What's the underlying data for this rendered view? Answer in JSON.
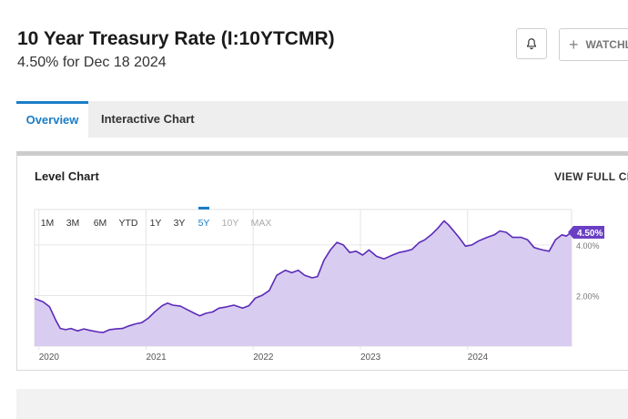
{
  "header": {
    "title": "10 Year Treasury Rate (I:10YTCMR)",
    "subtitle": "4.50% for Dec 18 2024",
    "watch_label": "WATCHL"
  },
  "tabs": [
    {
      "label": "Overview",
      "active": true
    },
    {
      "label": "Interactive Chart",
      "active": false
    }
  ],
  "card": {
    "title": "Level Chart",
    "action_label": "VIEW FULL CHA"
  },
  "range_buttons": [
    {
      "label": "1M",
      "state": "normal"
    },
    {
      "label": "3M",
      "state": "normal"
    },
    {
      "label": "6M",
      "state": "normal"
    },
    {
      "label": "YTD",
      "state": "normal"
    },
    {
      "label": "1Y",
      "state": "normal"
    },
    {
      "label": "3Y",
      "state": "normal"
    },
    {
      "label": "5Y",
      "state": "active"
    },
    {
      "label": "10Y",
      "state": "disabled"
    },
    {
      "label": "MAX",
      "state": "disabled"
    }
  ],
  "colors": {
    "accent": "#1a7dc7",
    "series_line": "#5b2bb8",
    "series_fill": "#d9ccf1",
    "badge": "#6a3fc4"
  },
  "chart_data": {
    "type": "area",
    "x_tick_labels": [
      "2020",
      "2021",
      "2022",
      "2023",
      "2024"
    ],
    "y_tick_labels": [
      "2.00%",
      "4.00%"
    ],
    "y_ticks": [
      2,
      4
    ],
    "x_range": [
      2019.96,
      2024.97
    ],
    "y_range": [
      0,
      5.4
    ],
    "grid": true,
    "last_value_label": "4.50%",
    "series": [
      {
        "x": [
          2019.96,
          2020.04,
          2020.1,
          2020.16,
          2020.2,
          2020.25,
          2020.3,
          2020.36,
          2020.42,
          2020.48,
          2020.55,
          2020.6,
          2020.66,
          2020.72,
          2020.78,
          2020.84,
          2020.9,
          2020.96,
          2021.02,
          2021.08,
          2021.15,
          2021.2,
          2021.25,
          2021.32,
          2021.38,
          2021.45,
          2021.5,
          2021.56,
          2021.62,
          2021.68,
          2021.75,
          2021.82,
          2021.9,
          2021.96,
          2022.02,
          2022.08,
          2022.15,
          2022.22,
          2022.3,
          2022.36,
          2022.42,
          2022.48,
          2022.55,
          2022.6,
          2022.66,
          2022.72,
          2022.78,
          2022.84,
          2022.9,
          2022.96,
          2023.02,
          2023.08,
          2023.15,
          2023.22,
          2023.3,
          2023.36,
          2023.42,
          2023.48,
          2023.55,
          2023.6,
          2023.66,
          2023.72,
          2023.78,
          2023.82,
          2023.86,
          2023.92,
          2023.98,
          2024.04,
          2024.1,
          2024.18,
          2024.25,
          2024.3,
          2024.36,
          2024.42,
          2024.5,
          2024.56,
          2024.62,
          2024.66,
          2024.7,
          2024.76,
          2024.82,
          2024.88,
          2024.92,
          2024.97
        ],
        "y": [
          1.88,
          1.75,
          1.55,
          1.0,
          0.7,
          0.65,
          0.7,
          0.6,
          0.68,
          0.62,
          0.56,
          0.54,
          0.65,
          0.68,
          0.7,
          0.8,
          0.88,
          0.93,
          1.1,
          1.35,
          1.6,
          1.7,
          1.62,
          1.58,
          1.45,
          1.3,
          1.2,
          1.3,
          1.35,
          1.5,
          1.55,
          1.62,
          1.5,
          1.6,
          1.9,
          2.0,
          2.2,
          2.8,
          3.0,
          2.9,
          3.0,
          2.8,
          2.7,
          2.75,
          3.4,
          3.8,
          4.1,
          4.0,
          3.7,
          3.75,
          3.6,
          3.8,
          3.55,
          3.45,
          3.6,
          3.7,
          3.75,
          3.82,
          4.1,
          4.2,
          4.4,
          4.65,
          4.95,
          4.8,
          4.6,
          4.3,
          3.95,
          4.0,
          4.15,
          4.3,
          4.4,
          4.55,
          4.5,
          4.3,
          4.3,
          4.2,
          3.9,
          3.85,
          3.8,
          3.75,
          4.2,
          4.4,
          4.35,
          4.5
        ]
      }
    ]
  }
}
